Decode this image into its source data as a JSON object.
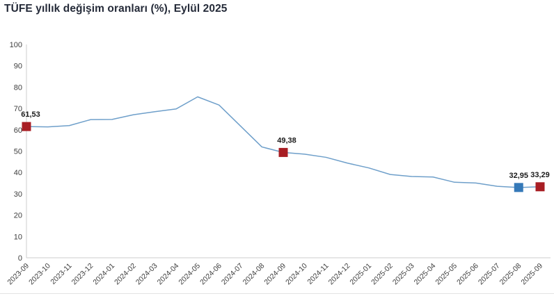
{
  "title": "TÜFE yıllık değişim oranları (%), Eylül 2025",
  "colors": {
    "title": "#252b39",
    "line": "#6e9fca",
    "marker_red": "#a81e24",
    "marker_blue": "#3579b8",
    "axis": "#cccccc",
    "tick_label": "#3d3d3d",
    "data_label": "#1a1a1a",
    "bottom_border": "#e3e3e3"
  },
  "chart_data": {
    "type": "line",
    "title": "TÜFE yıllık değişim oranları (%), Eylül 2025",
    "xlabel": "",
    "ylabel": "",
    "ylim": [
      0,
      100
    ],
    "y_ticks": [
      0,
      10,
      20,
      30,
      40,
      50,
      60,
      70,
      80,
      90,
      100
    ],
    "grid": false,
    "legend": false,
    "x": [
      "2023-09",
      "2023-10",
      "2023-11",
      "2023-12",
      "2024-01",
      "2024-02",
      "2024-03",
      "2024-04",
      "2024-05",
      "2024-06",
      "2024-07",
      "2024-08",
      "2024-09",
      "2024-10",
      "2024-11",
      "2024-12",
      "2025-01",
      "2025-02",
      "2025-03",
      "2025-04",
      "2025-05",
      "2025-06",
      "2025-07",
      "2025-08",
      "2025-09"
    ],
    "values": [
      61.53,
      61.36,
      61.98,
      64.77,
      64.86,
      67.07,
      68.5,
      69.8,
      75.45,
      71.6,
      61.78,
      51.97,
      49.38,
      48.58,
      47.09,
      44.38,
      42.12,
      39.05,
      38.1,
      37.86,
      35.41,
      35.05,
      33.52,
      32.95,
      33.29
    ],
    "annotated_points": [
      {
        "month": "2023-09",
        "value": 61.53,
        "label": "61,53",
        "marker": "red",
        "label_dx": 6
      },
      {
        "month": "2024-09",
        "value": 49.38,
        "label": "49,38",
        "marker": "red",
        "label_dx": 5
      },
      {
        "month": "2025-08",
        "value": 32.95,
        "label": "32,95",
        "marker": "blue",
        "label_dx": 0
      },
      {
        "month": "2025-09",
        "value": 33.29,
        "label": "33,29",
        "marker": "red",
        "label_dx": 0
      }
    ]
  }
}
